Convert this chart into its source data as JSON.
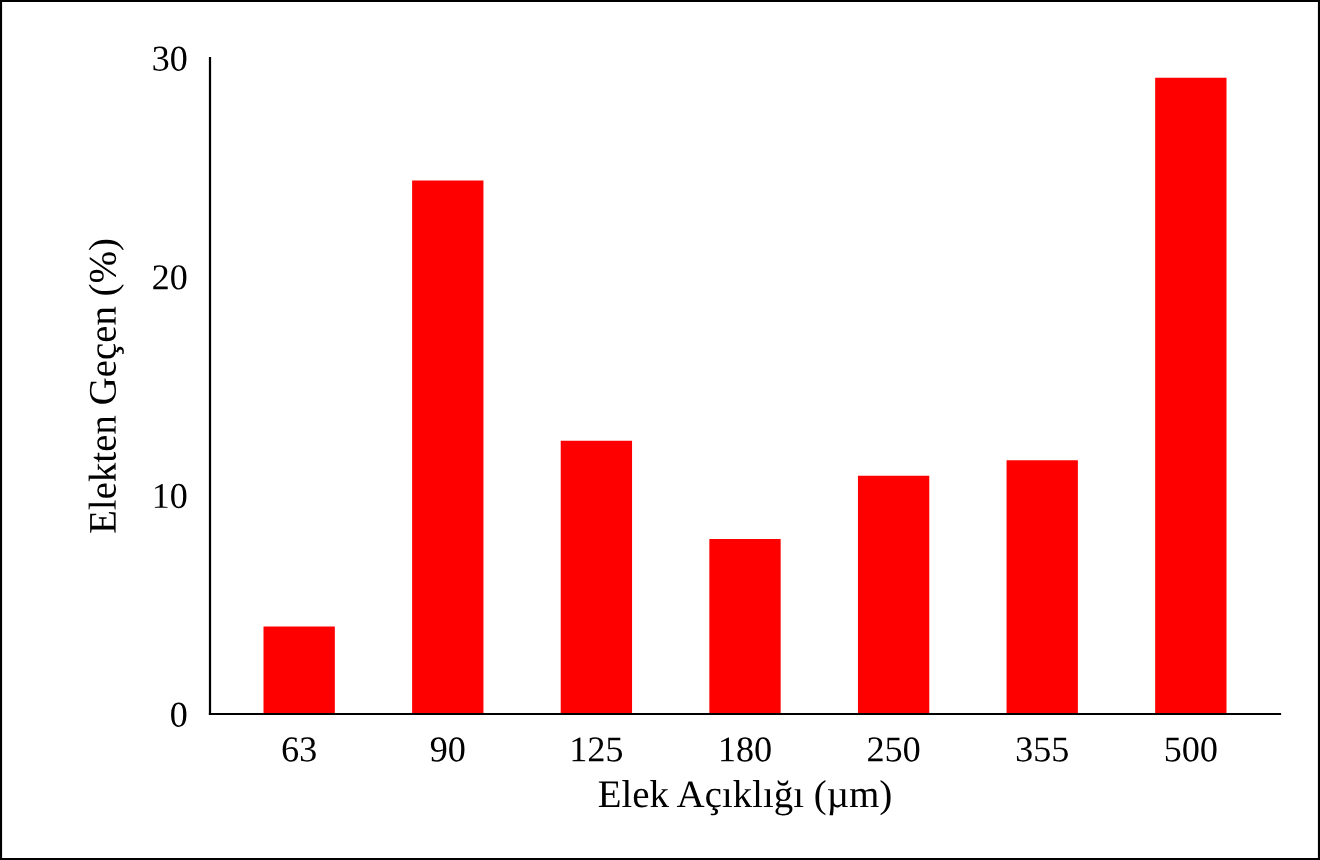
{
  "chart_data": {
    "type": "bar",
    "xlabel": "Elek Açıklığı (µm)",
    "ylabel": "Elekten Geçen (%)",
    "categories": [
      "63",
      "90",
      "125",
      "180",
      "250",
      "355",
      "500"
    ],
    "values": [
      4.0,
      24.4,
      12.5,
      8.0,
      10.9,
      11.6,
      29.1
    ],
    "color": "#ff0000",
    "ylim": [
      0,
      30
    ],
    "yticks": [
      0,
      10,
      20,
      30
    ],
    "grid": false,
    "legend": false
  }
}
